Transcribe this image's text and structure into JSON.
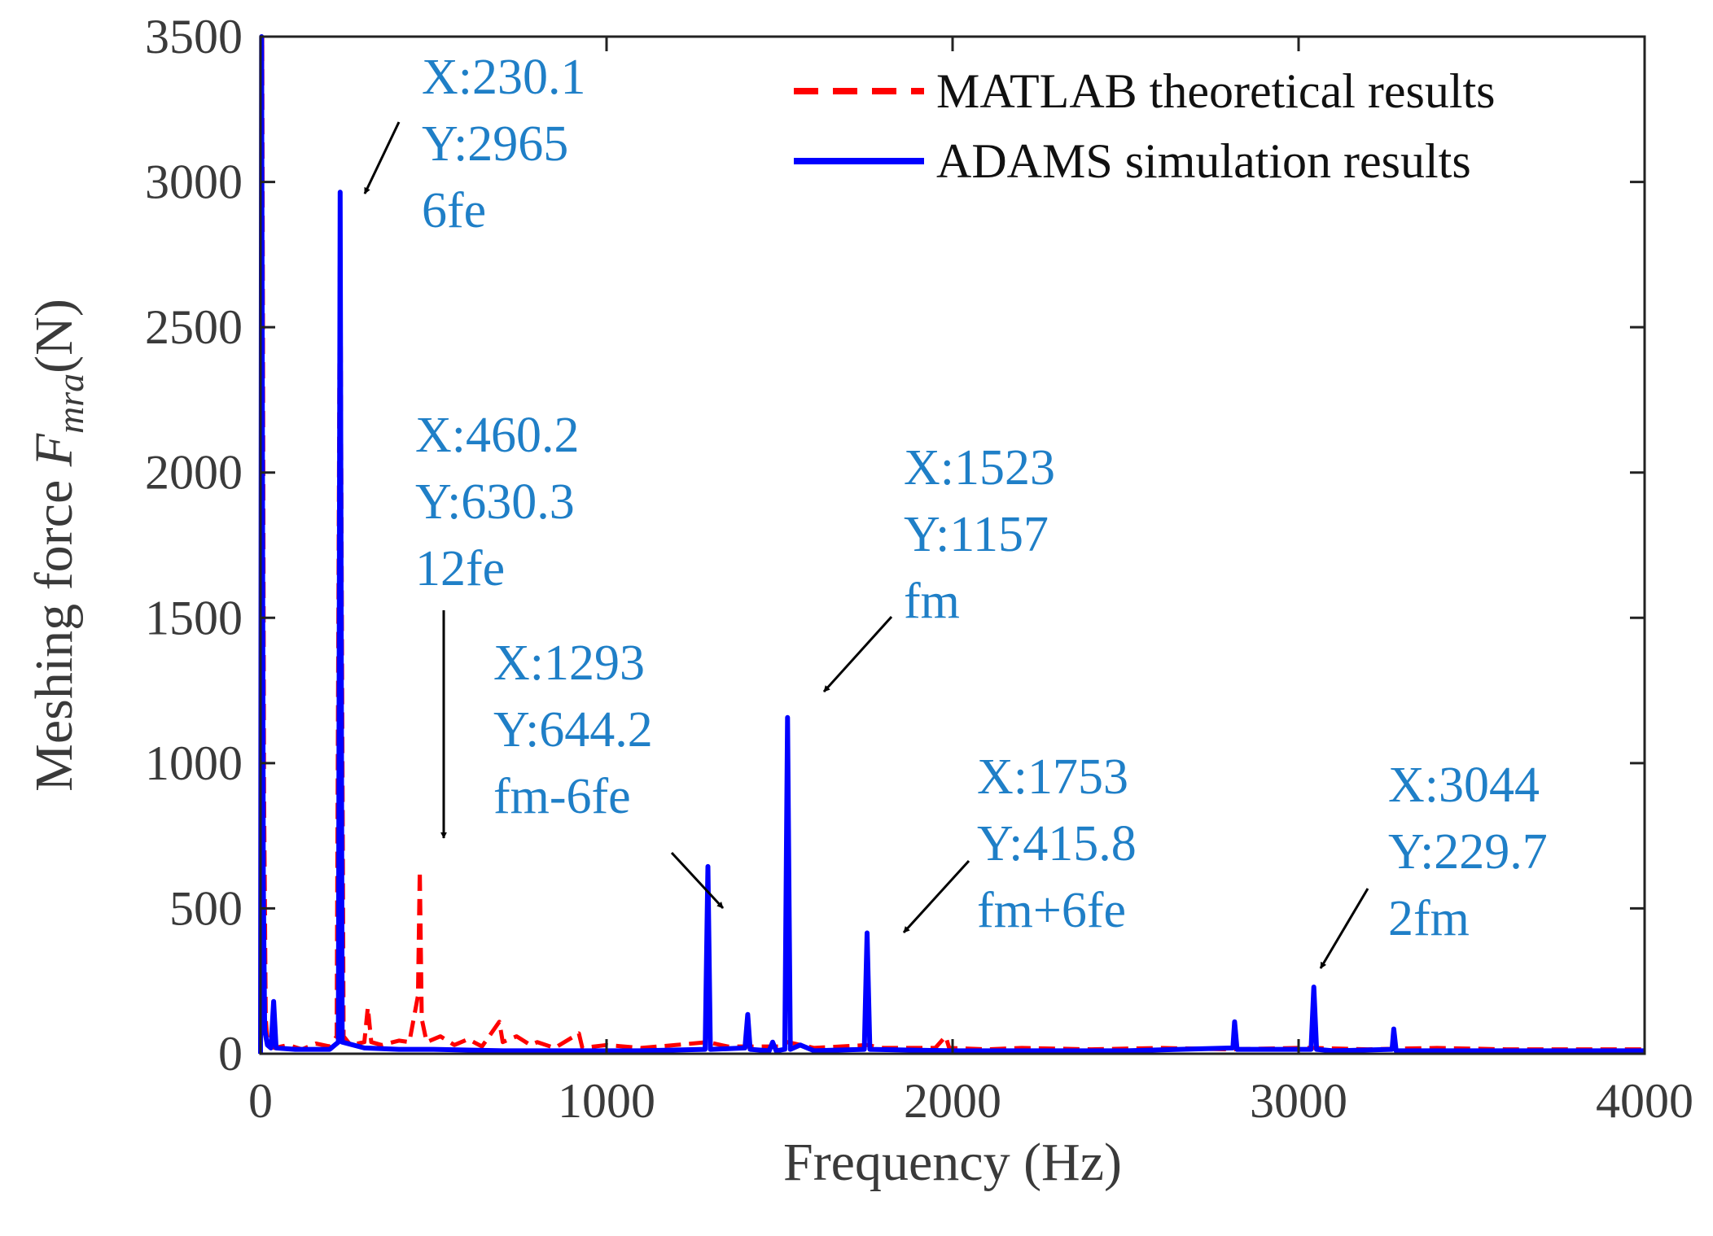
{
  "chart_data": {
    "type": "line",
    "title": "",
    "xlabel": "Frequency (Hz)",
    "ylabel": {
      "prefix": "Meshing force ",
      "symbol": "F",
      "subscript": "mra",
      "suffix": "(N)"
    },
    "xlim": [
      0,
      4000
    ],
    "ylim": [
      0,
      3500
    ],
    "x_ticks": [
      0,
      1000,
      2000,
      3000,
      4000
    ],
    "y_ticks": [
      0,
      500,
      1000,
      1500,
      2000,
      2500,
      3000,
      3500
    ],
    "x_tick_labels": [
      "0",
      "1000",
      "2000",
      "3000",
      "4000"
    ],
    "y_tick_labels": [
      "0",
      "500",
      "1000",
      "1500",
      "2000",
      "2500",
      "3000",
      "3500"
    ],
    "legend": {
      "position": "top-right",
      "entries": [
        "MATLAB theoretical results",
        "ADAMS simulation results"
      ]
    },
    "series": [
      {
        "name": "MATLAB theoretical results",
        "color": "#ff0000",
        "style": "dashed",
        "points": [
          [
            0,
            0
          ],
          [
            5,
            3500
          ],
          [
            10,
            900
          ],
          [
            15,
            120
          ],
          [
            20,
            40
          ],
          [
            40,
            20
          ],
          [
            80,
            30
          ],
          [
            120,
            15
          ],
          [
            160,
            35
          ],
          [
            200,
            25
          ],
          [
            220,
            60
          ],
          [
            230.1,
            2965
          ],
          [
            240,
            60
          ],
          [
            260,
            30
          ],
          [
            300,
            40
          ],
          [
            310,
            160
          ],
          [
            320,
            40
          ],
          [
            350,
            30
          ],
          [
            400,
            45
          ],
          [
            430,
            40
          ],
          [
            455,
            200
          ],
          [
            460.2,
            630.3
          ],
          [
            466,
            120
          ],
          [
            480,
            40
          ],
          [
            520,
            60
          ],
          [
            560,
            30
          ],
          [
            600,
            50
          ],
          [
            640,
            25
          ],
          [
            690,
            110
          ],
          [
            700,
            40
          ],
          [
            740,
            60
          ],
          [
            780,
            30
          ],
          [
            800,
            40
          ],
          [
            850,
            20
          ],
          [
            920,
            70
          ],
          [
            930,
            20
          ],
          [
            1000,
            30
          ],
          [
            1100,
            20
          ],
          [
            1200,
            30
          ],
          [
            1293,
            40
          ],
          [
            1350,
            25
          ],
          [
            1400,
            25
          ],
          [
            1500,
            25
          ],
          [
            1523,
            40
          ],
          [
            1600,
            20
          ],
          [
            1753,
            30
          ],
          [
            1800,
            20
          ],
          [
            1900,
            20
          ],
          [
            1950,
            20
          ],
          [
            1980,
            60
          ],
          [
            1990,
            20
          ],
          [
            2100,
            15
          ],
          [
            2200,
            20
          ],
          [
            2400,
            15
          ],
          [
            2600,
            20
          ],
          [
            2800,
            15
          ],
          [
            3000,
            20
          ],
          [
            3044,
            20
          ],
          [
            3200,
            15
          ],
          [
            3400,
            20
          ],
          [
            3600,
            15
          ],
          [
            3800,
            15
          ],
          [
            4000,
            15
          ]
        ]
      },
      {
        "name": "ADAMS simulation results",
        "color": "#0000ff",
        "style": "solid",
        "points": [
          [
            0,
            0
          ],
          [
            3,
            3500
          ],
          [
            8,
            600
          ],
          [
            12,
            80
          ],
          [
            20,
            30
          ],
          [
            30,
            20
          ],
          [
            38,
            180
          ],
          [
            45,
            20
          ],
          [
            100,
            15
          ],
          [
            200,
            15
          ],
          [
            225,
            40
          ],
          [
            230.1,
            2965
          ],
          [
            236,
            40
          ],
          [
            300,
            20
          ],
          [
            400,
            15
          ],
          [
            500,
            15
          ],
          [
            700,
            10
          ],
          [
            900,
            10
          ],
          [
            1100,
            10
          ],
          [
            1285,
            15
          ],
          [
            1293,
            644.2
          ],
          [
            1300,
            15
          ],
          [
            1400,
            20
          ],
          [
            1408,
            135
          ],
          [
            1415,
            15
          ],
          [
            1470,
            10
          ],
          [
            1480,
            40
          ],
          [
            1490,
            10
          ],
          [
            1515,
            15
          ],
          [
            1523,
            1157
          ],
          [
            1531,
            15
          ],
          [
            1560,
            30
          ],
          [
            1600,
            10
          ],
          [
            1745,
            15
          ],
          [
            1753,
            415.8
          ],
          [
            1761,
            15
          ],
          [
            2000,
            10
          ],
          [
            2500,
            10
          ],
          [
            2810,
            20
          ],
          [
            2815,
            110
          ],
          [
            2822,
            15
          ],
          [
            2930,
            15
          ],
          [
            3036,
            15
          ],
          [
            3044,
            229.7
          ],
          [
            3052,
            15
          ],
          [
            3100,
            10
          ],
          [
            3270,
            15
          ],
          [
            3275,
            85
          ],
          [
            3282,
            10
          ],
          [
            3500,
            10
          ],
          [
            4000,
            10
          ]
        ]
      }
    ],
    "annotations": [
      {
        "lines": [
          "X:230.1",
          "Y:2965",
          "6fe"
        ],
        "point": [
          230.1,
          2965
        ]
      },
      {
        "lines": [
          "X:460.2",
          "Y:630.3",
          "12fe"
        ],
        "point": [
          460.2,
          630.3
        ]
      },
      {
        "lines": [
          "X:1293",
          "Y:644.2",
          "fm-6fe"
        ],
        "point": [
          1293,
          644.2
        ]
      },
      {
        "lines": [
          "X:1523",
          "Y:1157",
          "fm"
        ],
        "point": [
          1523,
          1157
        ]
      },
      {
        "lines": [
          "X:1753",
          "Y:415.8",
          "fm+6fe"
        ],
        "point": [
          1753,
          415.8
        ]
      },
      {
        "lines": [
          "X:3044",
          "Y:229.7",
          "2fm"
        ],
        "point": [
          3044,
          229.7
        ]
      }
    ],
    "annotation_color": "#1f7fc7",
    "arrow_color": "#000000",
    "grid": false
  }
}
